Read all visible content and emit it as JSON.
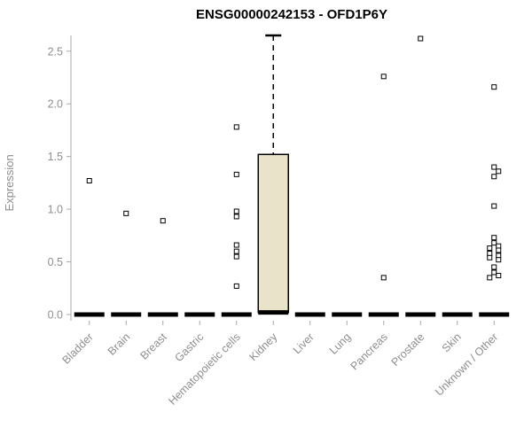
{
  "chart_data": {
    "type": "boxplot",
    "title": "ENSG00000242153 - OFD1P6Y",
    "xlabel": "",
    "ylabel": "Expression",
    "ylim": [
      0,
      2.7
    ],
    "yticks": [
      0.0,
      0.5,
      1.0,
      1.5,
      2.0,
      2.5
    ],
    "grid": false,
    "legend": "none",
    "categories": [
      "Bladder",
      "Brain",
      "Breast",
      "Gastric",
      "Hematopoietic cells",
      "Kidney",
      "Liver",
      "Lung",
      "Pancreas",
      "Prostate",
      "Skin",
      "Unknown / Other"
    ],
    "boxes": [
      {
        "category": "Bladder",
        "median": 0,
        "q1": 0,
        "q3": 0,
        "whisker_low": 0,
        "whisker_high": 0,
        "outliers": [
          1.27
        ]
      },
      {
        "category": "Brain",
        "median": 0,
        "q1": 0,
        "q3": 0,
        "whisker_low": 0,
        "whisker_high": 0,
        "outliers": [
          0.96
        ]
      },
      {
        "category": "Breast",
        "median": 0,
        "q1": 0,
        "q3": 0,
        "whisker_low": 0,
        "whisker_high": 0,
        "outliers": [
          0.89
        ]
      },
      {
        "category": "Gastric",
        "median": 0,
        "q1": 0,
        "q3": 0,
        "whisker_low": 0,
        "whisker_high": 0,
        "outliers": []
      },
      {
        "category": "Hematopoietic cells",
        "median": 0,
        "q1": 0,
        "q3": 0,
        "whisker_low": 0,
        "whisker_high": 0,
        "outliers": [
          1.78,
          1.33,
          0.98,
          0.93,
          0.66,
          0.6,
          0.55,
          0.27
        ]
      },
      {
        "category": "Kidney",
        "median": 0.02,
        "q1": 0.02,
        "q3": 1.52,
        "whisker_low": 0.02,
        "whisker_high": 2.65,
        "outliers": []
      },
      {
        "category": "Liver",
        "median": 0,
        "q1": 0,
        "q3": 0,
        "whisker_low": 0,
        "whisker_high": 0,
        "outliers": []
      },
      {
        "category": "Lung",
        "median": 0,
        "q1": 0,
        "q3": 0,
        "whisker_low": 0,
        "whisker_high": 0,
        "outliers": []
      },
      {
        "category": "Pancreas",
        "median": 0,
        "q1": 0,
        "q3": 0,
        "whisker_low": 0,
        "whisker_high": 0,
        "outliers": [
          2.26,
          0.35
        ]
      },
      {
        "category": "Prostate",
        "median": 0,
        "q1": 0,
        "q3": 0,
        "whisker_low": 0,
        "whisker_high": 0,
        "outliers": [
          2.62
        ]
      },
      {
        "category": "Skin",
        "median": 0,
        "q1": 0,
        "q3": 0,
        "whisker_low": 0,
        "whisker_high": 0,
        "outliers": []
      },
      {
        "category": "Unknown / Other",
        "median": 0,
        "q1": 0,
        "q3": 0,
        "whisker_low": 0,
        "whisker_high": 0,
        "outliers": [
          2.16,
          1.4,
          1.36,
          1.31,
          1.03,
          0.73,
          0.68,
          0.65,
          0.63,
          0.61,
          0.58,
          0.56,
          0.54,
          0.52,
          0.45,
          0.4,
          0.37,
          0.35
        ]
      }
    ],
    "colors": {
      "box_fill": "#e9e4c9",
      "box_stroke": "#000000",
      "median": "#000000",
      "whisker": "#000000",
      "outlier_stroke": "#000000",
      "outlier_fill": "#ffffff",
      "axis": "#a8a8a8",
      "tick_label": "#8e8e8e",
      "title": "#000000"
    }
  }
}
